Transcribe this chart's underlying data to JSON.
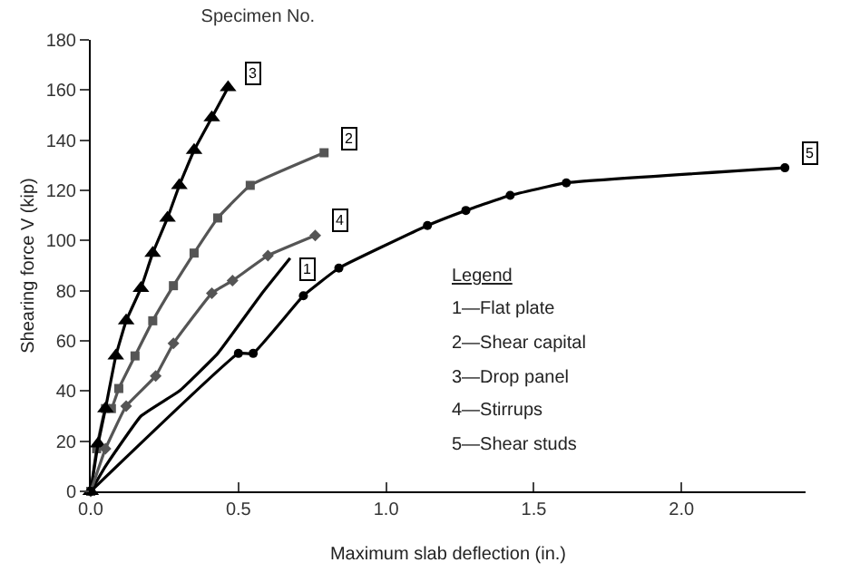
{
  "chart_data": {
    "type": "line",
    "title": "Specimen No.",
    "xlabel": "Maximum slab deflection (in.)",
    "ylabel": "Shearing force V (kip)",
    "xlim": [
      0,
      2.42
    ],
    "ylim": [
      0,
      180
    ],
    "xticks": [
      {
        "value": 0,
        "label": "0.0"
      },
      {
        "value": 0.5,
        "label": "0.5"
      },
      {
        "value": 1,
        "label": "1.0"
      },
      {
        "value": 1.5,
        "label": "1.5"
      },
      {
        "value": 2,
        "label": "2.0"
      }
    ],
    "yticks": [
      0,
      20,
      40,
      60,
      80,
      100,
      120,
      140,
      160,
      180
    ],
    "legend": false,
    "line_style": "solid",
    "annotations": [
      "Legend",
      "1—Flat plate",
      "2—Shear capital",
      "3—Drop panel",
      "4—Stirrups",
      "5—Shear studs"
    ],
    "series": [
      {
        "name": "1",
        "color": "#000000",
        "marker": "none",
        "x": [
          0,
          0.05,
          0.17,
          0.3,
          0.43,
          0.58,
          0.675
        ],
        "values": [
          0,
          10,
          30,
          40,
          55,
          79,
          93
        ]
      },
      {
        "name": "2",
        "color": "#555555",
        "marker": "square",
        "x": [
          0,
          0.02,
          0.05,
          0.07,
          0.095,
          0.15,
          0.21,
          0.28,
          0.35,
          0.43,
          0.54,
          0.79
        ],
        "values": [
          0,
          17,
          33,
          33,
          41,
          54,
          68,
          82,
          95,
          109,
          122,
          135
        ]
      },
      {
        "name": "3",
        "color": "#000000",
        "marker": "triangle",
        "x": [
          0,
          0.025,
          0.05,
          0.085,
          0.12,
          0.17,
          0.21,
          0.26,
          0.3,
          0.35,
          0.41,
          0.465
        ],
        "values": [
          0,
          19,
          33,
          54,
          68,
          81,
          95,
          109,
          122,
          136,
          149,
          161
        ]
      },
      {
        "name": "4",
        "color": "#555555",
        "marker": "diamond",
        "x": [
          0,
          0.05,
          0.12,
          0.22,
          0.28,
          0.41,
          0.48,
          0.6,
          0.76
        ],
        "values": [
          0,
          17,
          34,
          46,
          59,
          79,
          84,
          94,
          102
        ]
      },
      {
        "name": "5",
        "color": "#000000",
        "marker": "circle",
        "x": [
          0,
          0.5,
          0.55,
          0.72,
          0.84,
          1.14,
          1.27,
          1.42,
          1.61,
          2.35
        ],
        "values": [
          0,
          55,
          55,
          78,
          89,
          106,
          112,
          118,
          123,
          129
        ]
      }
    ]
  }
}
